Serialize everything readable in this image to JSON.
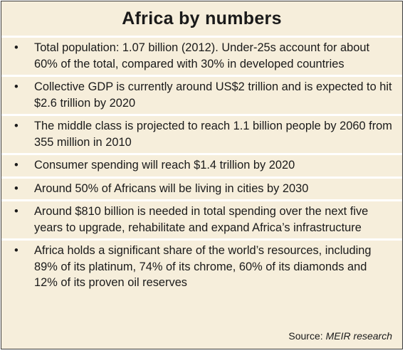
{
  "header": {
    "title": "Africa by numbers"
  },
  "items": [
    "Total population: 1.07 billion (2012). Under-25s account for about 60% of the total, compared with 30% in developed countries",
    "Collective GDP is currently around US$2 trillion and is expected to hit $2.6 trillion by 2020",
    "The middle class is projected to reach 1.1 billion people by 2060 from 355 million in 2010",
    "Consumer spending will reach $1.4 trillion by 2020",
    "Around 50% of Africans will be living in cities by 2030",
    "Around $810 billion is needed in total spending over the next five years to upgrade, rehabilitate and expand Africa’s infrastructure",
    "Africa holds a significant share of the world’s resources, including 89% of its platinum, 74% of its chrome, 60% of its diamonds and 12% of its proven oil reserves"
  ],
  "source": {
    "label": "Source:",
    "name": "MEIR research"
  }
}
